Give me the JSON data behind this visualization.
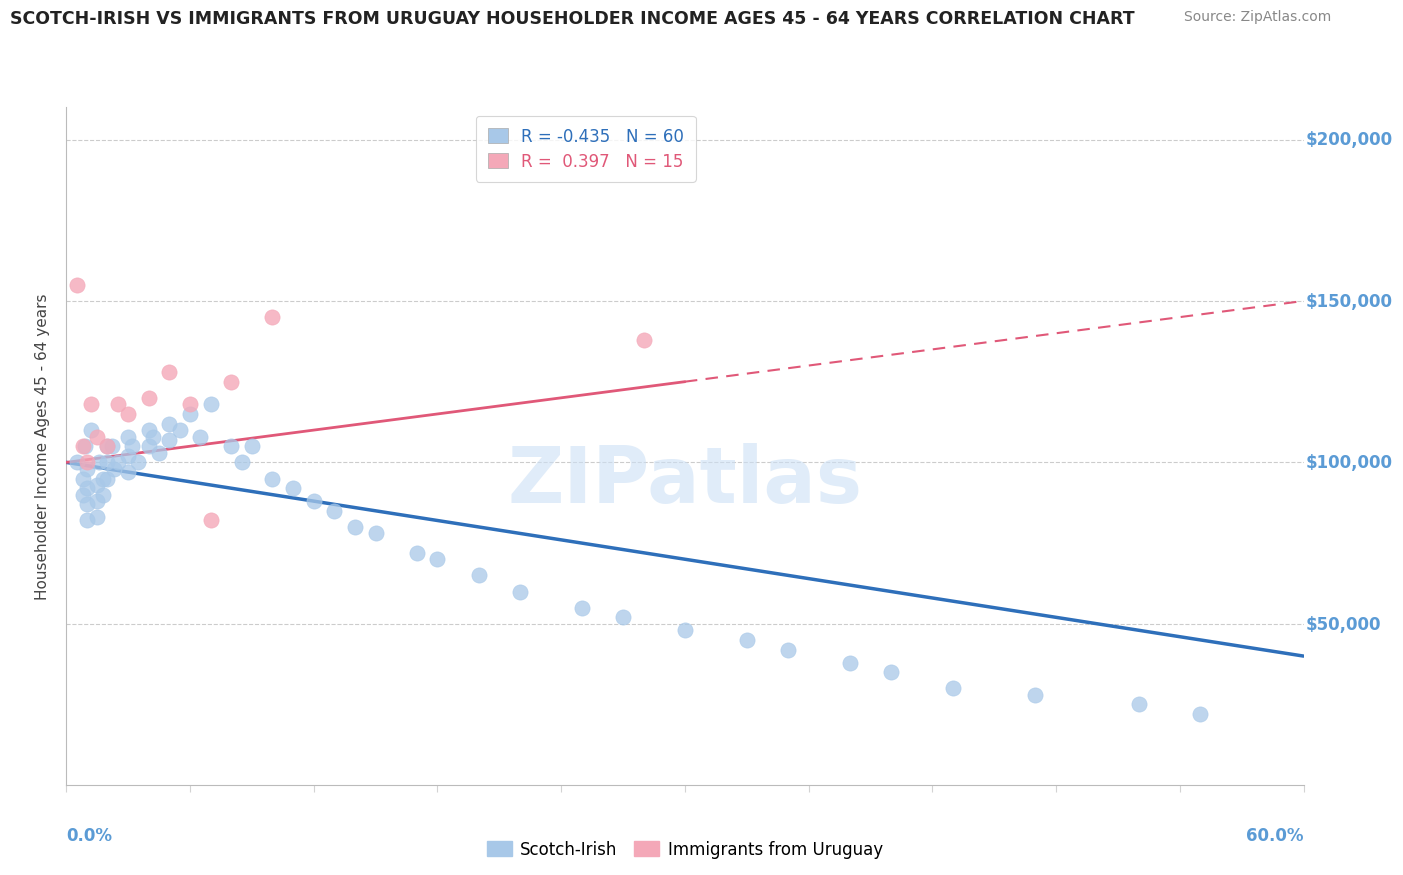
{
  "title": "SCOTCH-IRISH VS IMMIGRANTS FROM URUGUAY HOUSEHOLDER INCOME AGES 45 - 64 YEARS CORRELATION CHART",
  "source": "Source: ZipAtlas.com",
  "ylabel": "Householder Income Ages 45 - 64 years",
  "xmin": 0.0,
  "xmax": 0.6,
  "ymin": 0,
  "ymax": 210000,
  "yticks": [
    0,
    50000,
    100000,
    150000,
    200000
  ],
  "ytick_labels": [
    "",
    "$50,000",
    "$100,000",
    "$150,000",
    "$200,000"
  ],
  "series1_name": "Scotch-Irish",
  "series1_color": "#a8c8e8",
  "series1_line_color": "#2e6fba",
  "series1_R": -0.435,
  "series1_N": 60,
  "series2_name": "Immigrants from Uruguay",
  "series2_color": "#f4a8b8",
  "series2_line_color": "#e05878",
  "series2_R": 0.397,
  "series2_N": 15,
  "axis_color": "#5b9bd5",
  "title_color": "#222222",
  "scotch_irish_x": [
    0.005,
    0.008,
    0.008,
    0.009,
    0.01,
    0.01,
    0.01,
    0.01,
    0.012,
    0.015,
    0.015,
    0.015,
    0.016,
    0.018,
    0.018,
    0.02,
    0.02,
    0.02,
    0.022,
    0.023,
    0.025,
    0.03,
    0.03,
    0.03,
    0.032,
    0.035,
    0.04,
    0.04,
    0.042,
    0.045,
    0.05,
    0.05,
    0.055,
    0.06,
    0.065,
    0.07,
    0.08,
    0.085,
    0.09,
    0.1,
    0.11,
    0.12,
    0.13,
    0.14,
    0.15,
    0.17,
    0.18,
    0.2,
    0.22,
    0.25,
    0.27,
    0.3,
    0.33,
    0.35,
    0.38,
    0.4,
    0.43,
    0.47,
    0.52,
    0.55
  ],
  "scotch_irish_y": [
    100000,
    95000,
    90000,
    105000,
    98000,
    92000,
    87000,
    82000,
    110000,
    93000,
    88000,
    83000,
    100000,
    95000,
    90000,
    105000,
    100000,
    95000,
    105000,
    98000,
    100000,
    108000,
    102000,
    97000,
    105000,
    100000,
    110000,
    105000,
    108000,
    103000,
    112000,
    107000,
    110000,
    115000,
    108000,
    118000,
    105000,
    100000,
    105000,
    95000,
    92000,
    88000,
    85000,
    80000,
    78000,
    72000,
    70000,
    65000,
    60000,
    55000,
    52000,
    48000,
    45000,
    42000,
    38000,
    35000,
    30000,
    28000,
    25000,
    22000
  ],
  "uruguay_x": [
    0.005,
    0.008,
    0.01,
    0.012,
    0.015,
    0.02,
    0.025,
    0.03,
    0.04,
    0.05,
    0.06,
    0.07,
    0.08,
    0.1,
    0.28
  ],
  "uruguay_y": [
    155000,
    105000,
    100000,
    118000,
    108000,
    105000,
    118000,
    115000,
    120000,
    128000,
    118000,
    82000,
    125000,
    145000,
    138000
  ]
}
